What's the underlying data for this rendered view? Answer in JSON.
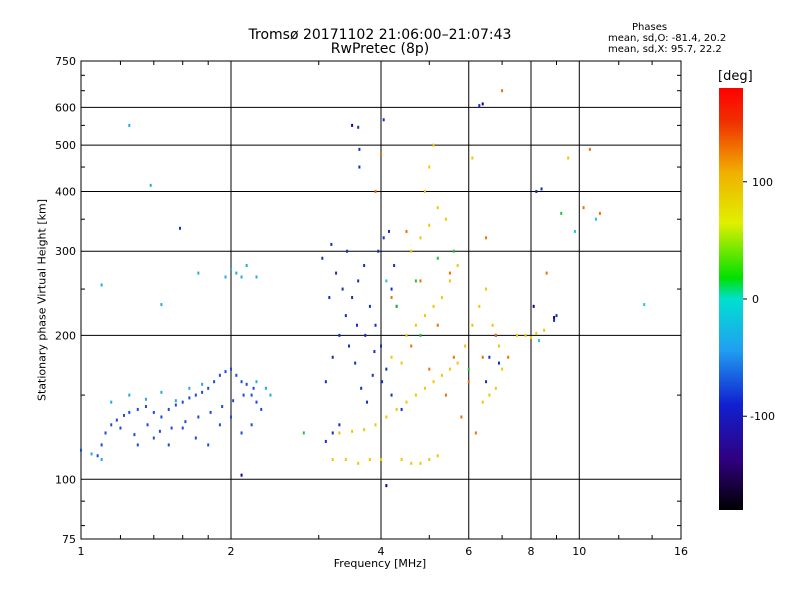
{
  "header": {
    "title_line1": "Tromsø 20171102 21:06:00–21:07:43",
    "title_line2": "RwPretec (8p)"
  },
  "stats": {
    "title": "Phases",
    "o_line": "mean, sd,O: -81.4, 20.2",
    "x_line": "mean, sd,X:  95.7, 22.2"
  },
  "colorbar": {
    "unit": "[deg]",
    "ticks": [
      {
        "label": "100",
        "value": 100
      },
      {
        "label": "0",
        "value": 0
      },
      {
        "label": "-100",
        "value": -100
      }
    ],
    "range": [
      -180,
      180
    ]
  },
  "chart_data": {
    "type": "scatter",
    "xlabel": "Frequency [MHz]",
    "ylabel": "Stationary phase Virtual Height [km]",
    "x_scale": "log",
    "y_scale": "log",
    "xlim": [
      1,
      16
    ],
    "ylim": [
      75,
      750
    ],
    "x_ticks": [
      {
        "label": "1",
        "value": 1
      },
      {
        "label": "2",
        "value": 2
      },
      {
        "label": "4",
        "value": 4
      },
      {
        "label": "6",
        "value": 6
      },
      {
        "label": "8",
        "value": 8
      },
      {
        "label": "10",
        "value": 10
      },
      {
        "label": "16",
        "value": 16
      }
    ],
    "y_ticks": [
      {
        "label": "75",
        "value": 75
      },
      {
        "label": "100",
        "value": 100
      },
      {
        "label": "200",
        "value": 200
      },
      {
        "label": "300",
        "value": 300
      },
      {
        "label": "400",
        "value": 400
      },
      {
        "label": "500",
        "value": 500
      },
      {
        "label": "600",
        "value": 600
      },
      {
        "label": "750",
        "value": 750
      }
    ],
    "grid": true,
    "grid_x": [
      2,
      4,
      6,
      8,
      10
    ],
    "grid_y": [
      100,
      200,
      300,
      400,
      500,
      600
    ],
    "series": [
      {
        "color_note": "blue O-mode trace, ~-80 deg",
        "color": "#1a4cd8",
        "points": [
          [
            1.08,
            112
          ],
          [
            1.12,
            125
          ],
          [
            1.15,
            130
          ],
          [
            1.18,
            133
          ],
          [
            1.22,
            136
          ],
          [
            1.25,
            138
          ],
          [
            1.3,
            140
          ],
          [
            1.35,
            142
          ],
          [
            1.4,
            138
          ],
          [
            1.45,
            135
          ],
          [
            1.5,
            140
          ],
          [
            1.55,
            143
          ],
          [
            1.6,
            145
          ],
          [
            1.65,
            148
          ],
          [
            1.7,
            150
          ],
          [
            1.75,
            152
          ],
          [
            1.8,
            155
          ],
          [
            1.85,
            160
          ],
          [
            1.9,
            165
          ],
          [
            1.95,
            168
          ],
          [
            2.0,
            170
          ],
          [
            2.05,
            165
          ],
          [
            2.1,
            160
          ],
          [
            2.15,
            158
          ],
          [
            2.2,
            150
          ],
          [
            2.25,
            145
          ],
          [
            2.3,
            140
          ],
          [
            1.2,
            128
          ],
          [
            1.28,
            124
          ],
          [
            1.36,
            130
          ],
          [
            1.44,
            126
          ],
          [
            1.52,
            128
          ],
          [
            1.62,
            132
          ],
          [
            1.72,
            135
          ],
          [
            1.82,
            138
          ],
          [
            1.92,
            142
          ],
          [
            2.02,
            146
          ],
          [
            2.12,
            150
          ],
          [
            2.22,
            155
          ],
          [
            1.6,
            128
          ],
          [
            1.7,
            122
          ],
          [
            1.8,
            118
          ],
          [
            1.9,
            130
          ],
          [
            2.0,
            135
          ],
          [
            2.1,
            125
          ],
          [
            2.2,
            130
          ],
          [
            1.3,
            118
          ],
          [
            1.4,
            122
          ],
          [
            1.5,
            118
          ],
          [
            1.1,
            118
          ],
          [
            1.0,
            115
          ]
        ]
      },
      {
        "color_note": "light blue / cyan points",
        "color": "#2aa8e0",
        "points": [
          [
            1.05,
            113
          ],
          [
            1.1,
            110
          ],
          [
            1.15,
            145
          ],
          [
            1.25,
            150
          ],
          [
            1.35,
            147
          ],
          [
            1.45,
            152
          ],
          [
            1.55,
            146
          ],
          [
            1.65,
            155
          ],
          [
            1.75,
            158
          ],
          [
            2.25,
            160
          ],
          [
            2.35,
            155
          ],
          [
            2.4,
            150
          ],
          [
            2.0,
            275
          ],
          [
            2.05,
            270
          ],
          [
            2.1,
            265
          ],
          [
            2.15,
            280
          ],
          [
            2.25,
            265
          ],
          [
            1.72,
            270
          ],
          [
            1.45,
            232
          ],
          [
            1.38,
            412
          ],
          [
            1.25,
            550
          ],
          [
            1.1,
            255
          ],
          [
            1.95,
            265
          ]
        ]
      },
      {
        "color_note": "dark blue upper F-region cloud",
        "color": "#1230c0",
        "points": [
          [
            3.1,
            160
          ],
          [
            3.2,
            180
          ],
          [
            3.3,
            200
          ],
          [
            3.4,
            220
          ],
          [
            3.5,
            240
          ],
          [
            3.6,
            260
          ],
          [
            3.7,
            280
          ],
          [
            3.8,
            230
          ],
          [
            3.9,
            210
          ],
          [
            4.0,
            190
          ],
          [
            4.1,
            170
          ],
          [
            4.2,
            250
          ],
          [
            4.3,
            230
          ],
          [
            3.15,
            240
          ],
          [
            3.25,
            270
          ],
          [
            3.35,
            250
          ],
          [
            3.45,
            190
          ],
          [
            3.55,
            175
          ],
          [
            3.65,
            155
          ],
          [
            3.75,
            145
          ],
          [
            3.85,
            165
          ],
          [
            3.95,
            300
          ],
          [
            4.05,
            320
          ],
          [
            4.15,
            330
          ],
          [
            4.25,
            280
          ],
          [
            3.05,
            290
          ],
          [
            3.18,
            310
          ],
          [
            3.42,
            300
          ],
          [
            3.58,
            210
          ],
          [
            3.72,
            200
          ],
          [
            3.88,
            185
          ],
          [
            4.02,
            160
          ],
          [
            4.2,
            150
          ],
          [
            4.4,
            140
          ],
          [
            3.3,
            130
          ],
          [
            3.2,
            125
          ],
          [
            3.1,
            120
          ],
          [
            4.05,
            565
          ],
          [
            3.62,
            450
          ],
          [
            3.6,
            545
          ],
          [
            3.62,
            490
          ],
          [
            6.3,
            605
          ],
          [
            6.6,
            180
          ],
          [
            6.8,
            200
          ],
          [
            6.9,
            175
          ],
          [
            6.5,
            160
          ],
          [
            8.2,
            400
          ],
          [
            8.4,
            405
          ],
          [
            8.9,
            215
          ],
          [
            9.0,
            220
          ],
          [
            1.58,
            335
          ]
        ]
      },
      {
        "color_note": "yellow/orange X-mode trace, ~+100 deg",
        "color": "#f0c800",
        "points": [
          [
            3.2,
            110
          ],
          [
            3.4,
            110
          ],
          [
            3.6,
            108
          ],
          [
            3.8,
            110
          ],
          [
            4.0,
            110
          ],
          [
            4.4,
            110
          ],
          [
            4.6,
            108
          ],
          [
            4.8,
            108
          ],
          [
            5.0,
            110
          ],
          [
            5.2,
            112
          ],
          [
            3.3,
            125
          ],
          [
            3.5,
            126
          ],
          [
            3.7,
            127
          ],
          [
            3.9,
            130
          ],
          [
            4.1,
            135
          ],
          [
            4.3,
            140
          ],
          [
            4.5,
            145
          ],
          [
            4.7,
            150
          ],
          [
            4.9,
            155
          ],
          [
            5.1,
            160
          ],
          [
            5.3,
            165
          ],
          [
            5.5,
            170
          ],
          [
            5.7,
            175
          ],
          [
            4.5,
            200
          ],
          [
            4.7,
            210
          ],
          [
            4.9,
            220
          ],
          [
            5.1,
            230
          ],
          [
            5.3,
            240
          ],
          [
            5.5,
            260
          ],
          [
            5.7,
            280
          ],
          [
            4.6,
            300
          ],
          [
            4.8,
            320
          ],
          [
            5.0,
            340
          ],
          [
            4.9,
            400
          ],
          [
            5.0,
            450
          ],
          [
            5.1,
            500
          ],
          [
            7.5,
            200
          ],
          [
            7.8,
            200
          ],
          [
            8.0,
            198
          ],
          [
            8.2,
            202
          ],
          [
            8.5,
            205
          ],
          [
            9.5,
            470
          ],
          [
            6.1,
            470
          ],
          [
            5.2,
            370
          ],
          [
            5.4,
            350
          ],
          [
            4.2,
            180
          ],
          [
            4.4,
            175
          ],
          [
            5.9,
            190
          ],
          [
            6.1,
            210
          ],
          [
            6.3,
            230
          ],
          [
            6.5,
            250
          ],
          [
            6.7,
            210
          ],
          [
            6.9,
            190
          ],
          [
            7.0,
            170
          ],
          [
            6.4,
            145
          ],
          [
            6.6,
            150
          ],
          [
            6.8,
            155
          ]
        ]
      },
      {
        "color_note": "orange/red scattered points",
        "color": "#f07000",
        "points": [
          [
            4.0,
            480
          ],
          [
            4.5,
            330
          ],
          [
            4.8,
            260
          ],
          [
            5.2,
            210
          ],
          [
            5.6,
            180
          ],
          [
            6.0,
            160
          ],
          [
            6.4,
            180
          ],
          [
            6.8,
            200
          ],
          [
            7.0,
            650
          ],
          [
            7.2,
            180
          ],
          [
            10.5,
            490
          ],
          [
            3.9,
            400
          ],
          [
            4.2,
            240
          ],
          [
            4.6,
            190
          ],
          [
            5.0,
            170
          ],
          [
            5.4,
            150
          ],
          [
            5.8,
            135
          ],
          [
            6.2,
            125
          ],
          [
            5.5,
            270
          ],
          [
            6.5,
            320
          ],
          [
            8.6,
            270
          ],
          [
            10.2,
            370
          ],
          [
            11.0,
            360
          ]
        ]
      },
      {
        "color_note": "green / cyan-green points",
        "color": "#20c040",
        "points": [
          [
            4.3,
            230
          ],
          [
            4.7,
            260
          ],
          [
            5.2,
            290
          ],
          [
            5.6,
            300
          ],
          [
            6.0,
            170
          ],
          [
            4.8,
            200
          ],
          [
            2.8,
            125
          ],
          [
            9.2,
            360
          ]
        ]
      },
      {
        "color_note": "cyan sparse points",
        "color": "#20c8d0",
        "points": [
          [
            9.8,
            330
          ],
          [
            10.8,
            350
          ],
          [
            13.5,
            232
          ],
          [
            8.3,
            195
          ],
          [
            4.1,
            260
          ]
        ]
      },
      {
        "color_note": "dark navy / purple points",
        "color": "#200080",
        "points": [
          [
            4.1,
            97
          ],
          [
            2.1,
            102
          ],
          [
            3.5,
            550
          ],
          [
            6.4,
            610
          ],
          [
            8.9,
            218
          ],
          [
            8.1,
            230
          ]
        ]
      }
    ]
  }
}
